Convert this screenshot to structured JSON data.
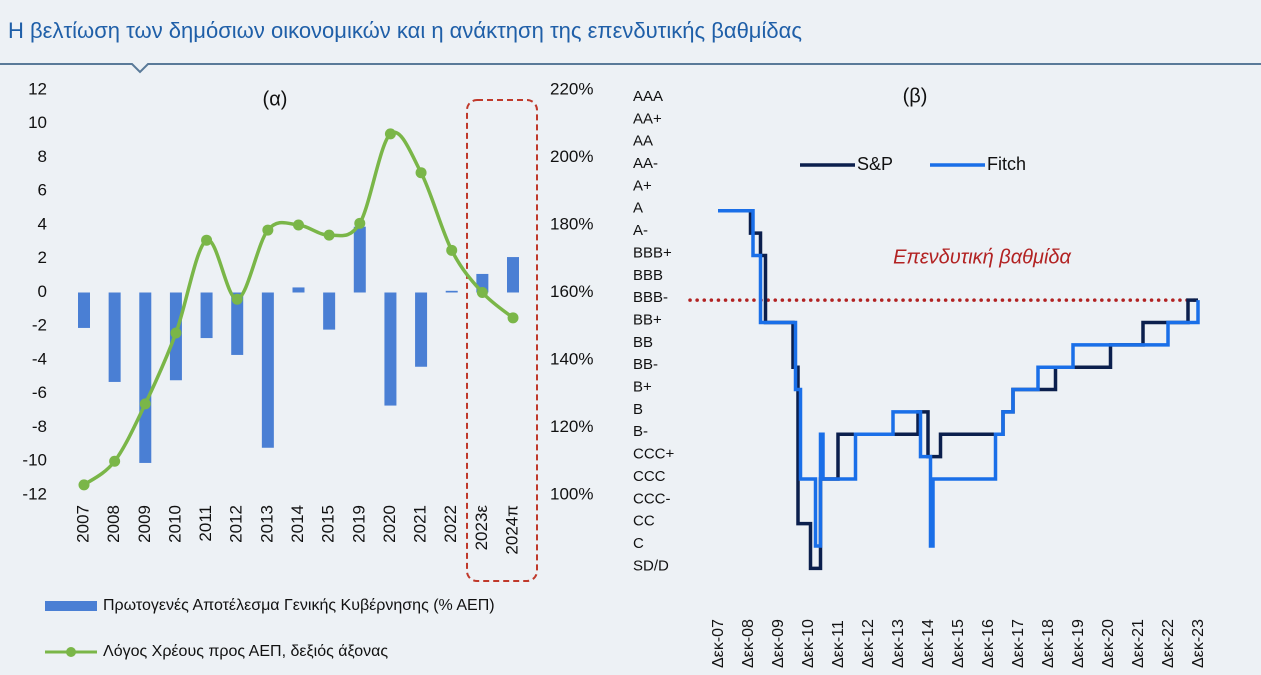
{
  "header": {
    "title": "Η βελτίωση των δημόσιων οικονομικών και η ανάκτηση της επενδυτικής βαθμίδας"
  },
  "chart_data": [
    {
      "type": "bar",
      "title": "(α)",
      "categories": [
        "2007",
        "2008",
        "2009",
        "2010",
        "2011",
        "2012",
        "2013",
        "2014",
        "2015",
        "2019",
        "2020",
        "2021",
        "2022",
        "2023ε",
        "2024π"
      ],
      "series": [
        {
          "name": "Πρωτογενές Αποτέλεσμα Γενικής Κυβέρνησης (% ΑΕΠ)",
          "type": "bar",
          "color": "#4a7fd4",
          "values": [
            -2.1,
            -5.3,
            -10.1,
            -5.2,
            -2.7,
            -3.7,
            -9.2,
            0.3,
            -2.2,
            3.9,
            -6.7,
            -4.4,
            0.1,
            1.1,
            2.1
          ]
        },
        {
          "name": "Λόγος Χρέους προς ΑΕΠ, δεξιός άξονας",
          "type": "line",
          "axis": "y2",
          "color": "#7ab648",
          "values": [
            103,
            110,
            127,
            148,
            175.5,
            158,
            178.5,
            180,
            177,
            180.5,
            207,
            195.5,
            172.5,
            160,
            152.5
          ]
        }
      ],
      "ylim": [
        -12,
        12
      ],
      "yticks": [
        12,
        10,
        8,
        6,
        4,
        2,
        0,
        -2,
        -4,
        -6,
        -8,
        -10,
        -12
      ],
      "y2lim": [
        100,
        220
      ],
      "y2ticks": [
        {
          "value": 220,
          "label": "220%"
        },
        {
          "value": 200,
          "label": "200%"
        },
        {
          "value": 180,
          "label": "180%"
        },
        {
          "value": 160,
          "label": "160%"
        },
        {
          "value": 140,
          "label": "140%"
        },
        {
          "value": 120,
          "label": "120%"
        },
        {
          "value": 100,
          "label": "100%"
        }
      ]
    },
    {
      "type": "step",
      "title": "(β)",
      "y_categories": [
        "AAA",
        "AA+",
        "AA",
        "AA-",
        "A+",
        "A",
        "A-",
        "BBB+",
        "BBB",
        "BBB-",
        "BB+",
        "BB",
        "BB-",
        "B+",
        "B",
        "B-",
        "CCC+",
        "CCC",
        "CCC-",
        "CC",
        "C",
        "SD/D"
      ],
      "xlim": [
        "2007-12",
        "2023-12"
      ],
      "xticks": [
        {
          "value": "2007-12",
          "label": "Δεκ-07"
        },
        {
          "value": "2008-12",
          "label": "Δεκ-08"
        },
        {
          "value": "2009-12",
          "label": "Δεκ-09"
        },
        {
          "value": "2010-12",
          "label": "Δεκ-10"
        },
        {
          "value": "2011-12",
          "label": "Δεκ-11"
        },
        {
          "value": "2012-12",
          "label": "Δεκ-12"
        },
        {
          "value": "2013-12",
          "label": "Δεκ-13"
        },
        {
          "value": "2014-12",
          "label": "Δεκ-14"
        },
        {
          "value": "2015-12",
          "label": "Δεκ-15"
        },
        {
          "value": "2016-12",
          "label": "Δεκ-16"
        },
        {
          "value": "2017-12",
          "label": "Δεκ-17"
        },
        {
          "value": "2018-12",
          "label": "Δεκ-18"
        },
        {
          "value": "2019-12",
          "label": "Δεκ-19"
        },
        {
          "value": "2020-12",
          "label": "Δεκ-20"
        },
        {
          "value": "2021-12",
          "label": "Δεκ-21"
        },
        {
          "value": "2022-12",
          "label": "Δεκ-22"
        },
        {
          "value": "2023-12",
          "label": "Δεκ-23"
        }
      ],
      "series": [
        {
          "name": "S&P",
          "color": "#0b1f4d",
          "x": [
            "2007-12",
            "2009-01",
            "2009-05",
            "2009-07",
            "2010-06",
            "2010-08",
            "2011-01",
            "2011-05",
            "2011-12",
            "2014-08",
            "2014-12",
            "2015-05",
            "2017-06",
            "2017-10",
            "2019-03",
            "2021-01",
            "2022-02",
            "2023-08"
          ],
          "values": [
            "A",
            "A-",
            "BBB+",
            "BB+",
            "BB-",
            "CC",
            "SD/D",
            "CCC",
            "B-",
            "B",
            "CCC+",
            "B-",
            "B",
            "B+",
            "BB-",
            "BB",
            "BB+",
            "BBB-"
          ]
        },
        {
          "name": "Fitch",
          "color": "#1a6fe8",
          "x": [
            "2007-12",
            "2009-02",
            "2009-05",
            "2010-07",
            "2010-09",
            "2011-03",
            "2011-05",
            "2011-06",
            "2012-07",
            "2013-10",
            "2014-09",
            "2015-01",
            "2015-02",
            "2017-03",
            "2017-06",
            "2017-10",
            "2018-08",
            "2019-10",
            "2022-12",
            "2023-12"
          ],
          "values": [
            "A",
            "BBB+",
            "BB+",
            "B+",
            "CCC",
            "C",
            "B-",
            "CCC",
            "B-",
            "B",
            "CCC+",
            "C",
            "CCC",
            "B-",
            "B",
            "B+",
            "BB-",
            "BB",
            "BB+",
            "BBB-"
          ]
        }
      ],
      "threshold": "BBB-",
      "annotation": "Επενδυτική βαθμίδα"
    }
  ]
}
